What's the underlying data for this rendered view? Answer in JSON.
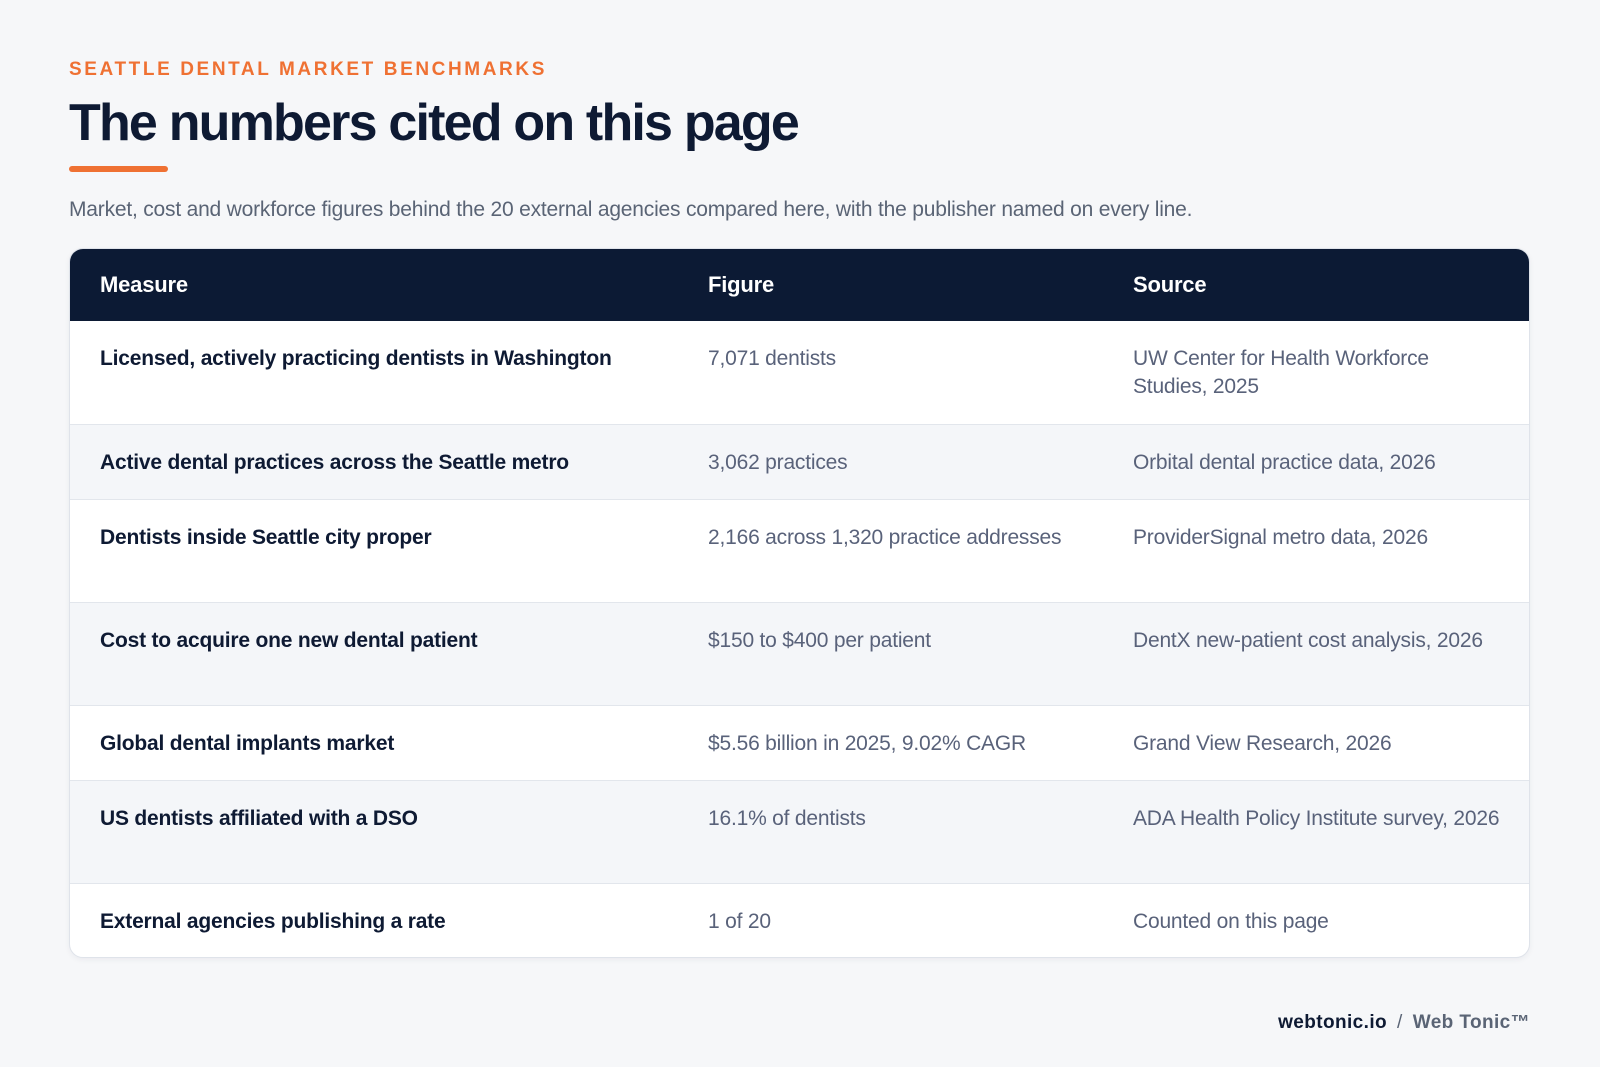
{
  "header": {
    "eyebrow": "SEATTLE DENTAL MARKET BENCHMARKS",
    "title": "The numbers cited on this page",
    "subtitle": "Market, cost and workforce figures behind the 20 external agencies compared here, with the publisher named on every line."
  },
  "table": {
    "columns": [
      "Measure",
      "Figure",
      "Source"
    ],
    "rows": [
      {
        "measure": "Licensed, actively practicing dentists in Washington",
        "figure": "7,071 dentists",
        "source": "UW Center for Health Workforce Studies, 2025"
      },
      {
        "measure": "Active dental practices across the Seattle metro",
        "figure": "3,062 practices",
        "source": "Orbital dental practice data, 2026"
      },
      {
        "measure": "Dentists inside Seattle city proper",
        "figure": "2,166 across 1,320 practice addresses",
        "source": "ProviderSignal metro data, 2026"
      },
      {
        "measure": "Cost to acquire one new dental patient",
        "figure": "$150 to $400 per patient",
        "source": "DentX new-patient cost analysis, 2026"
      },
      {
        "measure": "Global dental implants market",
        "figure": "$5.56 billion in 2025, 9.02% CAGR",
        "source": "Grand View Research, 2026"
      },
      {
        "measure": "US dentists affiliated with a DSO",
        "figure": "16.1% of dentists",
        "source": "ADA Health Policy Institute survey, 2026"
      },
      {
        "measure": "External agencies publishing a rate",
        "figure": "1 of 20",
        "source": "Counted on this page"
      }
    ]
  },
  "footer": {
    "domain": "webtonic.io",
    "separator": "/",
    "brand": "Web Tonic™"
  },
  "colors": {
    "accent": "#ef7133",
    "header_bg": "#0c1a34",
    "text_dark": "#0e1a33",
    "text_muted": "#59627a",
    "page_bg": "#f6f7f9"
  }
}
